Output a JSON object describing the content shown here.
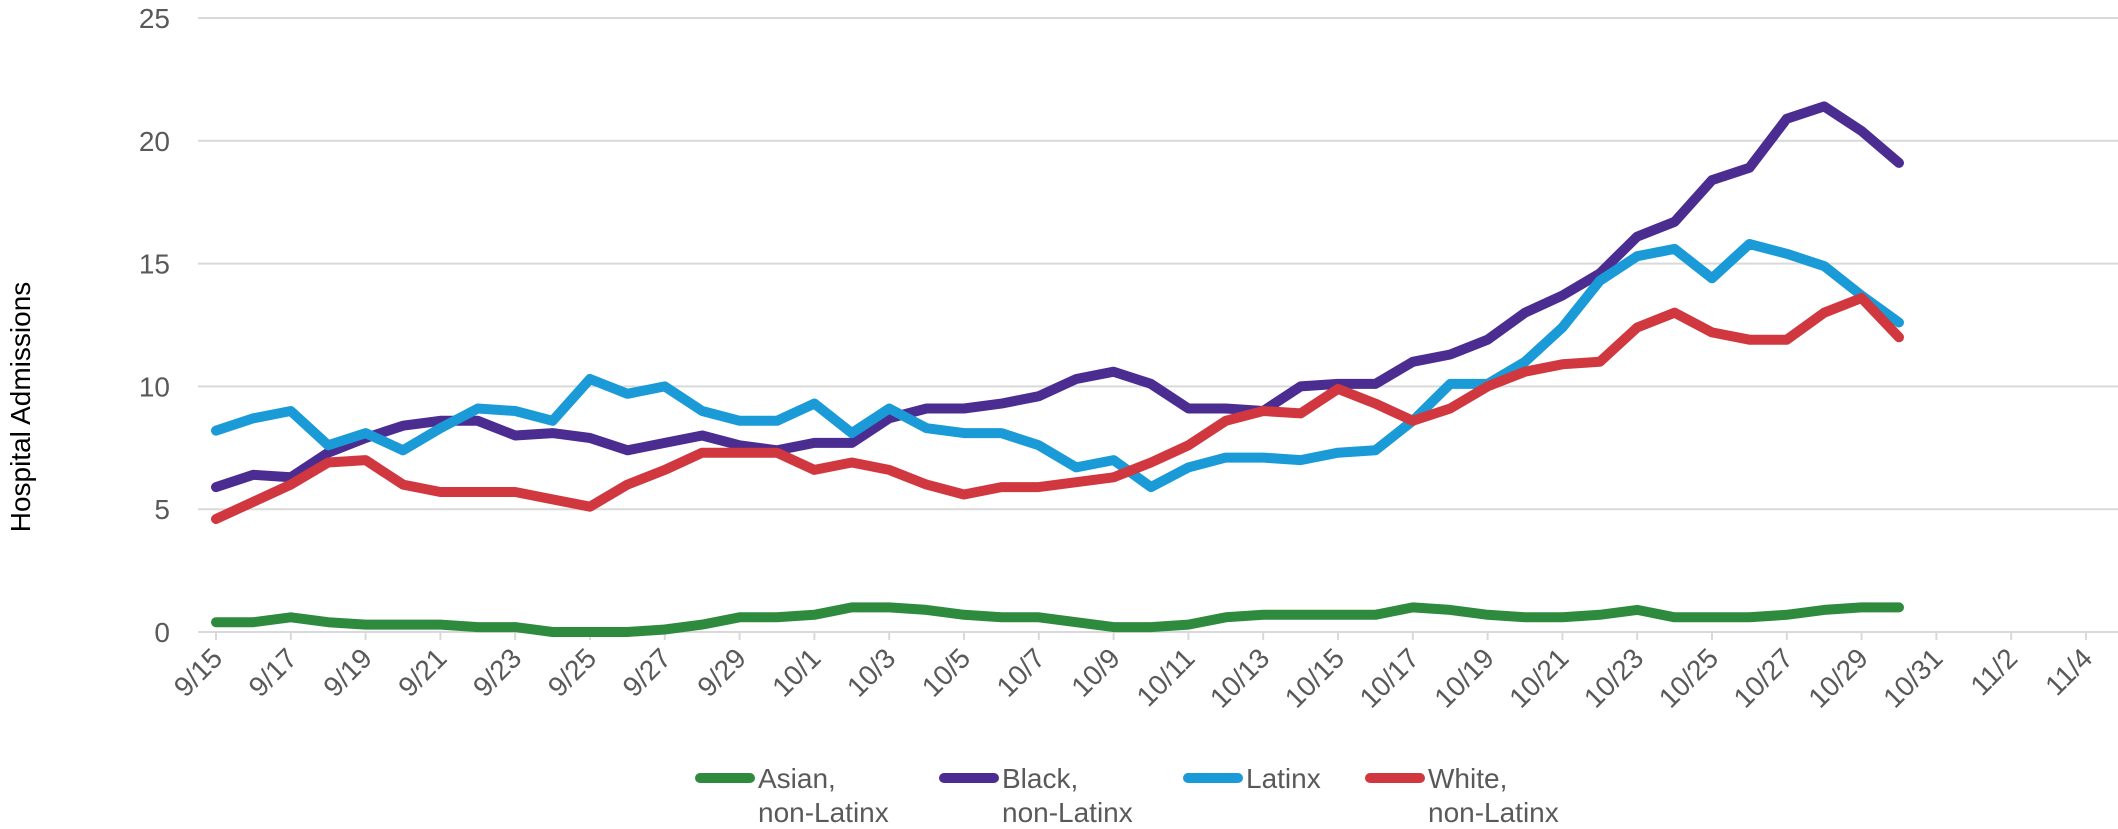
{
  "chart_data": {
    "type": "line",
    "title": "",
    "xlabel": "",
    "ylabel": "Hospital Admissions",
    "ylim": [
      0,
      25
    ],
    "yticks": [
      0,
      5,
      10,
      15,
      20,
      25
    ],
    "grid": true,
    "legend_position": "bottom",
    "x_tick_labels": [
      "9/15",
      "9/17",
      "9/19",
      "9/21",
      "9/23",
      "9/25",
      "9/27",
      "9/29",
      "10/1",
      "10/3",
      "10/5",
      "10/7",
      "10/9",
      "10/11",
      "10/13",
      "10/15",
      "10/17",
      "10/19",
      "10/21",
      "10/23",
      "10/25",
      "10/27",
      "10/29",
      "10/31",
      "11/2",
      "11/4"
    ],
    "x": [
      "9/15",
      "9/16",
      "9/17",
      "9/18",
      "9/19",
      "9/20",
      "9/21",
      "9/22",
      "9/23",
      "9/24",
      "9/25",
      "9/26",
      "9/27",
      "9/28",
      "9/29",
      "9/30",
      "10/1",
      "10/2",
      "10/3",
      "10/4",
      "10/5",
      "10/6",
      "10/7",
      "10/8",
      "10/9",
      "10/10",
      "10/11",
      "10/12",
      "10/13",
      "10/14",
      "10/15",
      "10/16",
      "10/17",
      "10/18",
      "10/19",
      "10/20",
      "10/21",
      "10/22",
      "10/23",
      "10/24",
      "10/25",
      "10/26",
      "10/27",
      "10/28",
      "10/29",
      "10/30"
    ],
    "series": [
      {
        "name": "Asian, non-Latinx",
        "color": "#2e8b3e",
        "values": [
          0.4,
          0.4,
          0.6,
          0.4,
          0.3,
          0.3,
          0.3,
          0.2,
          0.2,
          0.0,
          0.0,
          0.0,
          0.1,
          0.3,
          0.6,
          0.6,
          0.7,
          1.0,
          1.0,
          0.9,
          0.7,
          0.6,
          0.6,
          0.4,
          0.2,
          0.2,
          0.3,
          0.6,
          0.7,
          0.7,
          0.7,
          0.7,
          1.0,
          0.9,
          0.7,
          0.6,
          0.6,
          0.7,
          0.9,
          0.6,
          0.6,
          0.6,
          0.7,
          0.9,
          1.0,
          1.0
        ]
      },
      {
        "name": "Black, non-Latinx",
        "color": "#4b2c91",
        "values": [
          5.9,
          6.4,
          6.3,
          7.3,
          7.9,
          8.4,
          8.6,
          8.6,
          8.0,
          8.1,
          7.9,
          7.4,
          7.7,
          8.0,
          7.6,
          7.4,
          7.7,
          7.7,
          8.7,
          9.1,
          9.1,
          9.3,
          9.6,
          10.3,
          10.6,
          10.1,
          9.1,
          9.1,
          9.0,
          10.0,
          10.1,
          10.1,
          11.0,
          11.3,
          11.9,
          13.0,
          13.7,
          14.6,
          16.1,
          16.7,
          18.4,
          18.9,
          20.9,
          21.4,
          20.4,
          19.1
        ]
      },
      {
        "name": "Latinx",
        "color": "#1a9bd7",
        "values": [
          8.2,
          8.7,
          9.0,
          7.6,
          8.1,
          7.4,
          8.3,
          9.1,
          9.0,
          8.6,
          10.3,
          9.7,
          10.0,
          9.0,
          8.6,
          8.6,
          9.3,
          8.1,
          9.1,
          8.3,
          8.1,
          8.1,
          7.6,
          6.7,
          7.0,
          5.9,
          6.7,
          7.1,
          7.1,
          7.0,
          7.3,
          7.4,
          8.6,
          10.1,
          10.1,
          11.0,
          12.4,
          14.3,
          15.3,
          15.6,
          14.4,
          15.8,
          15.4,
          14.9,
          13.7,
          12.6
        ]
      },
      {
        "name": "White, non-Latinx",
        "color": "#d1373f",
        "values": [
          4.6,
          5.3,
          6.0,
          6.9,
          7.0,
          6.0,
          5.7,
          5.7,
          5.7,
          5.4,
          5.1,
          6.0,
          6.6,
          7.3,
          7.3,
          7.3,
          6.6,
          6.9,
          6.6,
          6.0,
          5.6,
          5.9,
          5.9,
          6.1,
          6.3,
          6.9,
          7.6,
          8.6,
          9.0,
          8.9,
          9.9,
          9.3,
          8.6,
          9.1,
          10.0,
          10.6,
          10.9,
          11.0,
          12.4,
          13.0,
          12.2,
          11.9,
          11.9,
          13.0,
          13.6,
          12.0
        ]
      }
    ],
    "legend": [
      {
        "line1": "Asian,",
        "line2": "non-Latinx"
      },
      {
        "line1": "Black,",
        "line2": "non-Latinx"
      },
      {
        "line1": "Latinx",
        "line2": ""
      },
      {
        "line1": "White,",
        "line2": "non-Latinx"
      }
    ]
  }
}
